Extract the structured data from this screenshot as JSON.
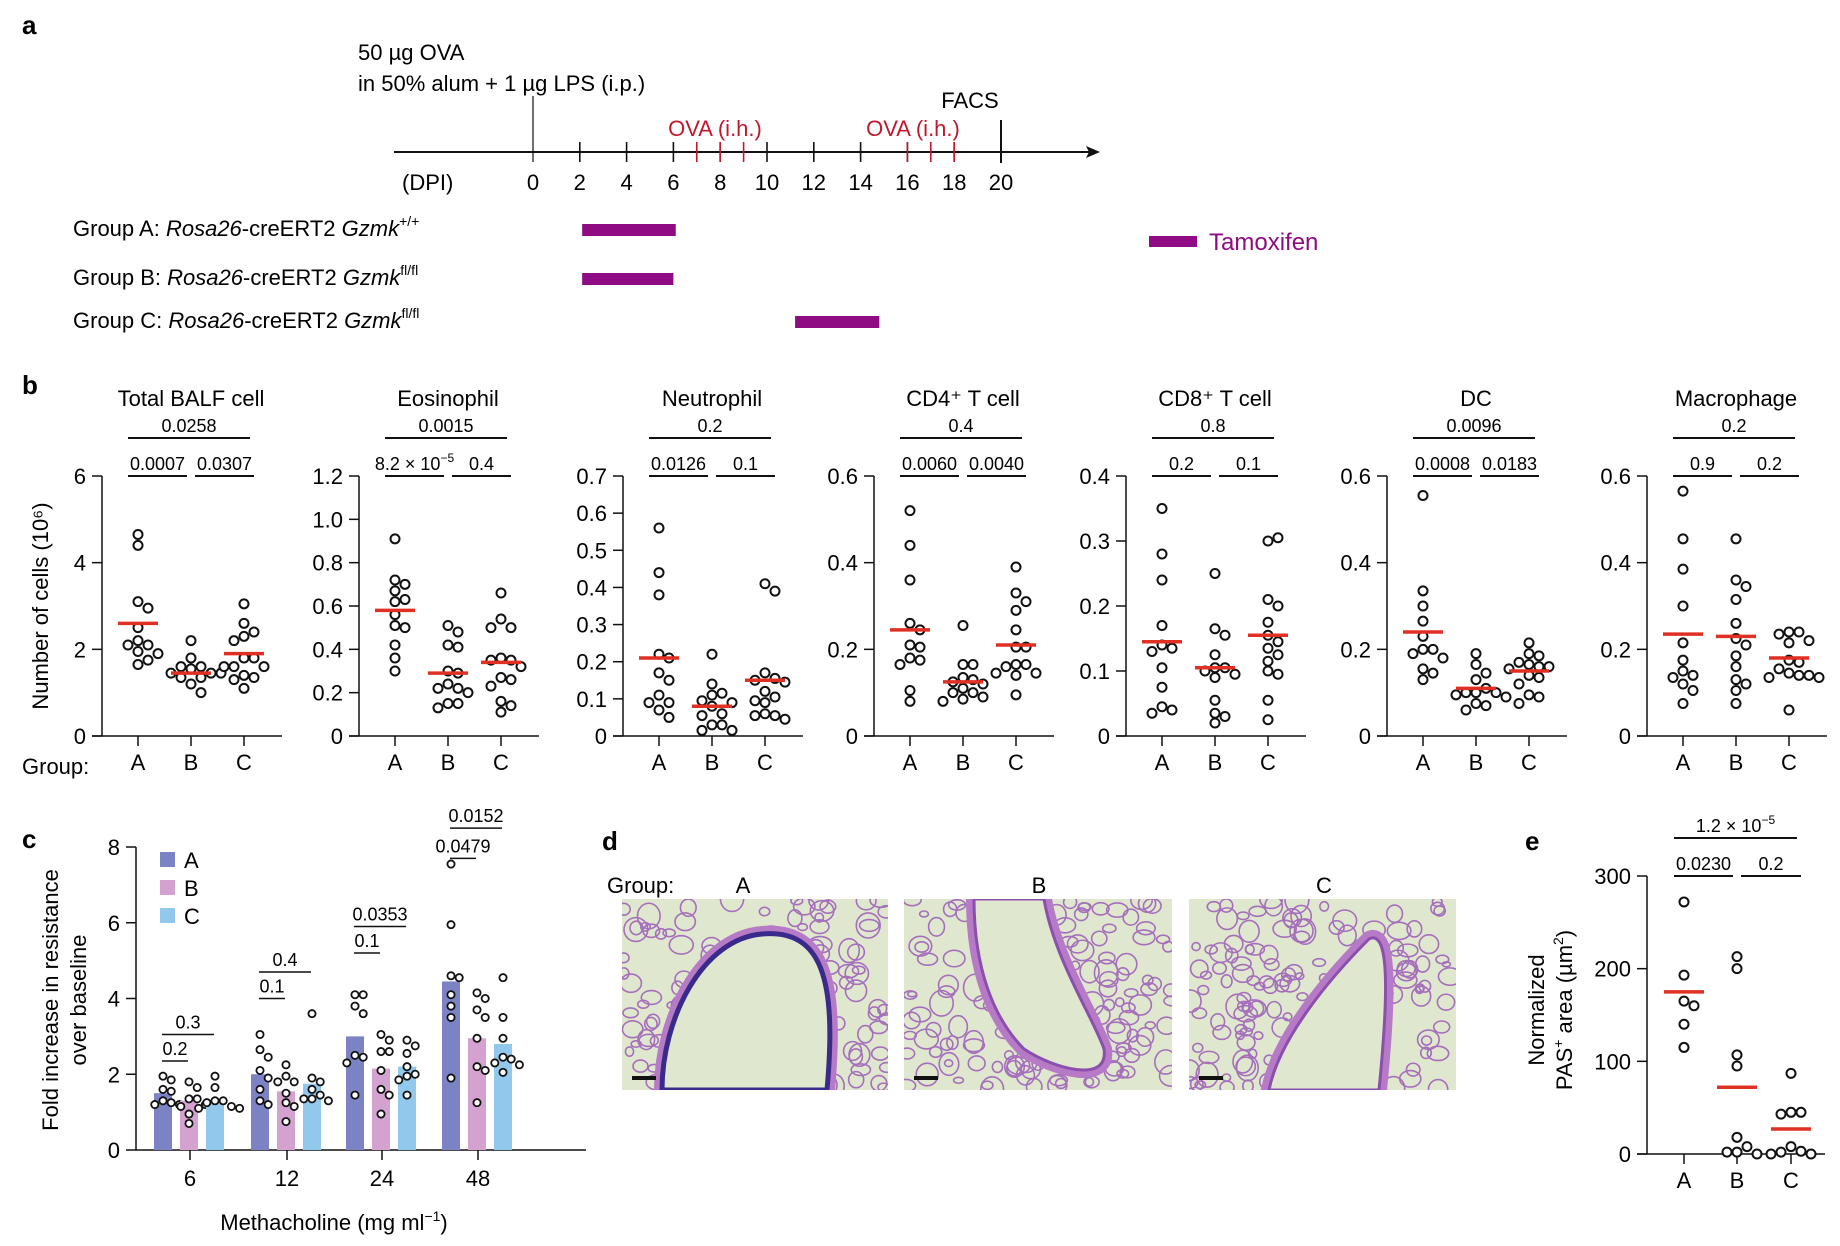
{
  "figure": {
    "panel_labels": [
      "a",
      "b",
      "c",
      "d",
      "e"
    ],
    "colors": {
      "tamoxifen": "#8e0b84",
      "ova_ih": "#c0182f",
      "median": "#e03024",
      "group_A": "#7c83c4",
      "group_B": "#d3a2cf",
      "group_C": "#92c8ec",
      "histo_bg": "#dfe8cf",
      "histo_stain": "#9b5ab8",
      "histo_goblet": "#3a2a8c"
    }
  },
  "panel_a": {
    "immunization_line1": "50 µg OVA",
    "immunization_line2": "in 50% alum + 1 µg LPS (i.p.)",
    "endpoint_label": "FACS",
    "ova_ih_label": "OVA (i.h.)",
    "axis_unit_label": "(DPI)",
    "tick_labels": [
      "0",
      "2",
      "4",
      "6",
      "8",
      "10",
      "12",
      "14",
      "16",
      "18",
      "20"
    ],
    "major_ticks_days": [
      0,
      2,
      4,
      6,
      8,
      10,
      12,
      14,
      16,
      18,
      20
    ],
    "ova_ih_days": [
      [
        7,
        8,
        9
      ],
      [
        16,
        17,
        18
      ]
    ],
    "immunization_day": 0,
    "facs_day": 20,
    "legend_label": "Tamoxifen",
    "groups": [
      {
        "prefix": "Group A: ",
        "strain": "Rosa26",
        "mid": "-creERT2 ",
        "gene": "Gzmk",
        "genotype": "+/+",
        "tamoxifen_days": [
          2.1,
          6.1
        ]
      },
      {
        "prefix": "Group B: ",
        "strain": "Rosa26",
        "mid": "-creERT2 ",
        "gene": "Gzmk",
        "genotype": "fl/fl",
        "tamoxifen_days": [
          2.1,
          6.0
        ]
      },
      {
        "prefix": "Group C: ",
        "strain": "Rosa26",
        "mid": "-creERT2 ",
        "gene": "Gzmk",
        "genotype": "fl/fl",
        "tamoxifen_days": [
          11.2,
          14.8
        ]
      }
    ]
  },
  "chart_data": [
    {
      "id": "b-total",
      "type": "scatter",
      "title": "Total BALF cell",
      "ylabel": "Number of cells (10⁶)",
      "xlabel_prefix": "Group:",
      "categories": [
        "A",
        "B",
        "C"
      ],
      "ylim": [
        0,
        6
      ],
      "yticks": [
        0,
        2,
        4,
        6
      ],
      "ytick_labels": [
        "0",
        "2",
        "4",
        "6"
      ],
      "points": {
        "A": [
          4.65,
          4.4,
          3.1,
          2.95,
          2.5,
          2.2,
          2.1,
          2.1,
          1.95,
          1.9,
          1.75,
          1.65
        ],
        "B": [
          2.2,
          1.8,
          1.6,
          1.6,
          1.55,
          1.45,
          1.45,
          1.45,
          1.35,
          1.35,
          1.2,
          1.0
        ],
        "C": [
          3.05,
          2.6,
          2.4,
          2.3,
          2.2,
          1.8,
          1.8,
          1.6,
          1.6,
          1.6,
          1.4,
          1.35,
          1.3,
          1.1
        ]
      },
      "medians": {
        "A": 2.6,
        "B": 1.45,
        "C": 1.9
      },
      "pvalues": [
        {
          "pair": [
            "A",
            "C"
          ],
          "label": "0.0258"
        },
        {
          "pair": [
            "A",
            "B"
          ],
          "label": "0.0007"
        },
        {
          "pair": [
            "B",
            "C"
          ],
          "label": "0.0307"
        }
      ]
    },
    {
      "id": "b-eos",
      "type": "scatter",
      "title": "Eosinophil",
      "categories": [
        "A",
        "B",
        "C"
      ],
      "ylim": [
        0,
        1.2
      ],
      "yticks": [
        0,
        0.2,
        0.4,
        0.6,
        0.8,
        1.0,
        1.2
      ],
      "ytick_labels": [
        "0",
        "0.2",
        "0.4",
        "0.6",
        "0.8",
        "1.0",
        "1.2"
      ],
      "points": {
        "A": [
          0.91,
          0.72,
          0.7,
          0.67,
          0.63,
          0.62,
          0.56,
          0.51,
          0.5,
          0.42,
          0.36,
          0.3
        ],
        "B": [
          0.51,
          0.48,
          0.42,
          0.41,
          0.3,
          0.29,
          0.24,
          0.22,
          0.22,
          0.2,
          0.15,
          0.15,
          0.13
        ],
        "C": [
          0.66,
          0.54,
          0.5,
          0.5,
          0.36,
          0.35,
          0.35,
          0.32,
          0.27,
          0.26,
          0.23,
          0.16,
          0.14,
          0.11
        ]
      },
      "medians": {
        "A": 0.58,
        "B": 0.29,
        "C": 0.34
      },
      "pvalues": [
        {
          "pair": [
            "A",
            "C"
          ],
          "label": "0.0015"
        },
        {
          "pair": [
            "A",
            "B"
          ],
          "label": "8.2 × 10",
          "exp": "−5"
        },
        {
          "pair": [
            "B",
            "C"
          ],
          "label": "0.4"
        }
      ]
    },
    {
      "id": "b-neut",
      "type": "scatter",
      "title": "Neutrophil",
      "categories": [
        "A",
        "B",
        "C"
      ],
      "ylim": [
        0,
        0.7
      ],
      "yticks": [
        0,
        0.1,
        0.2,
        0.3,
        0.4,
        0.5,
        0.6,
        0.7
      ],
      "ytick_labels": [
        "0",
        "0.1",
        "0.2",
        "0.3",
        "0.4",
        "0.5",
        "0.6",
        "0.7"
      ],
      "points": {
        "A": [
          0.56,
          0.44,
          0.38,
          0.22,
          0.21,
          0.17,
          0.15,
          0.11,
          0.09,
          0.09,
          0.07,
          0.05
        ],
        "B": [
          0.22,
          0.14,
          0.115,
          0.11,
          0.095,
          0.09,
          0.08,
          0.06,
          0.055,
          0.03,
          0.03,
          0.015,
          0.015
        ],
        "C": [
          0.41,
          0.39,
          0.17,
          0.155,
          0.15,
          0.145,
          0.12,
          0.105,
          0.095,
          0.09,
          0.06,
          0.055,
          0.055,
          0.045
        ]
      },
      "medians": {
        "A": 0.21,
        "B": 0.08,
        "C": 0.15
      },
      "pvalues": [
        {
          "pair": [
            "A",
            "C"
          ],
          "label": "0.2"
        },
        {
          "pair": [
            "A",
            "B"
          ],
          "label": "0.0126"
        },
        {
          "pair": [
            "B",
            "C"
          ],
          "label": "0.1"
        }
      ]
    },
    {
      "id": "b-cd4",
      "type": "scatter",
      "title": "CD4⁺ T cell",
      "categories": [
        "A",
        "B",
        "C"
      ],
      "ylim": [
        0,
        0.6
      ],
      "yticks": [
        0,
        0.2,
        0.4,
        0.6
      ],
      "ytick_labels": [
        "0",
        "0.2",
        "0.4",
        "0.6"
      ],
      "points": {
        "A": [
          0.52,
          0.44,
          0.36,
          0.26,
          0.245,
          0.21,
          0.205,
          0.18,
          0.175,
          0.165,
          0.105,
          0.08
        ],
        "B": [
          0.255,
          0.165,
          0.165,
          0.135,
          0.13,
          0.125,
          0.12,
          0.11,
          0.1,
          0.1,
          0.09,
          0.085,
          0.08
        ],
        "C": [
          0.39,
          0.33,
          0.31,
          0.29,
          0.245,
          0.205,
          0.205,
          0.165,
          0.165,
          0.16,
          0.145,
          0.145,
          0.14,
          0.095
        ]
      },
      "medians": {
        "A": 0.245,
        "B": 0.125,
        "C": 0.21
      },
      "pvalues": [
        {
          "pair": [
            "A",
            "C"
          ],
          "label": "0.4"
        },
        {
          "pair": [
            "A",
            "B"
          ],
          "label": "0.0060"
        },
        {
          "pair": [
            "B",
            "C"
          ],
          "label": "0.0040"
        }
      ]
    },
    {
      "id": "b-cd8",
      "type": "scatter",
      "title": "CD8⁺ T cell",
      "categories": [
        "A",
        "B",
        "C"
      ],
      "ylim": [
        0,
        0.4
      ],
      "yticks": [
        0,
        0.1,
        0.2,
        0.3,
        0.4
      ],
      "ytick_labels": [
        "0",
        "0.1",
        "0.2",
        "0.3",
        "0.4"
      ],
      "points": {
        "A": [
          0.35,
          0.28,
          0.24,
          0.17,
          0.14,
          0.135,
          0.13,
          0.105,
          0.075,
          0.045,
          0.04,
          0.035
        ],
        "B": [
          0.25,
          0.165,
          0.155,
          0.125,
          0.105,
          0.105,
          0.1,
          0.095,
          0.09,
          0.055,
          0.035,
          0.03,
          0.02
        ],
        "C": [
          0.3,
          0.305,
          0.21,
          0.2,
          0.175,
          0.155,
          0.145,
          0.135,
          0.125,
          0.115,
          0.1,
          0.095,
          0.055,
          0.025
        ]
      },
      "medians": {
        "A": 0.145,
        "B": 0.105,
        "C": 0.155
      },
      "pvalues": [
        {
          "pair": [
            "A",
            "C"
          ],
          "label": "0.8"
        },
        {
          "pair": [
            "A",
            "B"
          ],
          "label": "0.2"
        },
        {
          "pair": [
            "B",
            "C"
          ],
          "label": "0.1"
        }
      ]
    },
    {
      "id": "b-dc",
      "type": "scatter",
      "title": "DC",
      "categories": [
        "A",
        "B",
        "C"
      ],
      "ylim": [
        0,
        0.6
      ],
      "yticks": [
        0,
        0.2,
        0.4,
        0.6
      ],
      "ytick_labels": [
        "0",
        "0.2",
        "0.4",
        "0.6"
      ],
      "points": {
        "A": [
          0.555,
          0.335,
          0.3,
          0.265,
          0.23,
          0.2,
          0.2,
          0.19,
          0.18,
          0.155,
          0.145,
          0.13
        ],
        "B": [
          0.19,
          0.165,
          0.145,
          0.13,
          0.11,
          0.1,
          0.1,
          0.1,
          0.095,
          0.09,
          0.075,
          0.07,
          0.06
        ],
        "C": [
          0.215,
          0.19,
          0.185,
          0.17,
          0.165,
          0.16,
          0.16,
          0.155,
          0.14,
          0.135,
          0.12,
          0.095,
          0.09,
          0.075
        ]
      },
      "medians": {
        "A": 0.24,
        "B": 0.11,
        "C": 0.15
      },
      "pvalues": [
        {
          "pair": [
            "A",
            "C"
          ],
          "label": "0.0096"
        },
        {
          "pair": [
            "A",
            "B"
          ],
          "label": "0.0008"
        },
        {
          "pair": [
            "B",
            "C"
          ],
          "label": "0.0183"
        }
      ]
    },
    {
      "id": "b-mac",
      "type": "scatter",
      "title": "Macrophage",
      "categories": [
        "A",
        "B",
        "C"
      ],
      "ylim": [
        0,
        0.6
      ],
      "yticks": [
        0,
        0.2,
        0.4,
        0.6
      ],
      "ytick_labels": [
        "0",
        "0.2",
        "0.4",
        "0.6"
      ],
      "points": {
        "A": [
          0.565,
          0.455,
          0.385,
          0.3,
          0.215,
          0.175,
          0.15,
          0.14,
          0.135,
          0.12,
          0.105,
          0.075
        ],
        "B": [
          0.455,
          0.36,
          0.345,
          0.315,
          0.26,
          0.225,
          0.21,
          0.185,
          0.16,
          0.13,
          0.12,
          0.105,
          0.075
        ],
        "C": [
          0.24,
          0.24,
          0.235,
          0.22,
          0.215,
          0.175,
          0.17,
          0.155,
          0.145,
          0.14,
          0.14,
          0.135,
          0.135,
          0.06
        ]
      },
      "medians": {
        "A": 0.235,
        "B": 0.23,
        "C": 0.18
      },
      "pvalues": [
        {
          "pair": [
            "A",
            "C"
          ],
          "label": "0.2"
        },
        {
          "pair": [
            "A",
            "B"
          ],
          "label": "0.9"
        },
        {
          "pair": [
            "B",
            "C"
          ],
          "label": "0.2"
        }
      ]
    },
    {
      "id": "c",
      "type": "bar",
      "ylabel_line1": "Fold increase in resistance",
      "ylabel_line2": "over baseline",
      "xlabel": "Methacholine (mg ml",
      "xlabel_exp": "−1",
      "xlabel_suffix": ")",
      "categories": [
        "6",
        "12",
        "24",
        "48"
      ],
      "ylim": [
        0,
        8
      ],
      "yticks": [
        0,
        2,
        4,
        6,
        8
      ],
      "ytick_labels": [
        "0",
        "2",
        "4",
        "6",
        "8"
      ],
      "legend": [
        "A",
        "B",
        "C"
      ],
      "legend_position": "top-left",
      "series": [
        {
          "name": "A",
          "values": [
            1.5,
            2.0,
            3.0,
            4.45
          ],
          "points": [
            [
              1.95,
              1.85,
              1.6,
              1.55,
              1.3,
              1.25,
              1.2,
              1.2
            ],
            [
              3.05,
              2.65,
              2.45,
              2.1,
              1.9,
              1.6,
              1.3,
              1.2
            ],
            [
              4.1,
              4.1,
              3.8,
              3.6,
              2.5,
              2.45,
              2.3,
              1.45
            ],
            [
              7.55,
              5.95,
              4.6,
              4.55,
              4.1,
              3.8,
              3.5,
              1.9
            ]
          ]
        },
        {
          "name": "B",
          "values": [
            1.3,
            1.55,
            2.15,
            2.95
          ],
          "points": [
            [
              1.8,
              1.65,
              1.35,
              1.35,
              1.15,
              0.95,
              1.2,
              0.7
            ],
            [
              2.25,
              1.95,
              1.8,
              1.8,
              1.5,
              1.25,
              1.15,
              0.75
            ],
            [
              3.05,
              2.9,
              2.6,
              2.6,
              2.1,
              1.6,
              1.45,
              0.95
            ],
            [
              4.15,
              4.0,
              3.7,
              3.5,
              2.95,
              2.2,
              2.1,
              1.25
            ]
          ]
        },
        {
          "name": "C",
          "values": [
            1.3,
            1.75,
            2.2,
            2.8
          ],
          "points": [
            [
              1.95,
              1.65,
              1.3,
              1.3,
              1.25,
              1.15,
              1.1,
              1.1
            ],
            [
              3.6,
              1.9,
              1.8,
              1.6,
              1.45,
              1.35,
              1.35,
              1.3
            ],
            [
              2.9,
              2.75,
              2.55,
              2.2,
              2.0,
              1.95,
              1.85,
              1.45
            ],
            [
              4.55,
              3.5,
              2.95,
              2.45,
              2.4,
              2.3,
              2.25,
              2.05
            ]
          ]
        }
      ],
      "pvalues": [
        {
          "category": "6",
          "pair": [
            "A",
            "B"
          ],
          "label": "0.2"
        },
        {
          "category": "6",
          "pair": [
            "A",
            "C"
          ],
          "label": "0.3"
        },
        {
          "category": "12",
          "pair": [
            "A",
            "B"
          ],
          "label": "0.1"
        },
        {
          "category": "12",
          "pair": [
            "A",
            "C"
          ],
          "label": "0.4"
        },
        {
          "category": "24",
          "pair": [
            "A",
            "B"
          ],
          "label": "0.1"
        },
        {
          "category": "24",
          "pair": [
            "A",
            "C"
          ],
          "label": "0.0353"
        },
        {
          "category": "48",
          "pair": [
            "A",
            "B"
          ],
          "label": "0.0479"
        },
        {
          "category": "48",
          "pair": [
            "A",
            "C"
          ],
          "label": "0.0152"
        }
      ]
    },
    {
      "id": "e",
      "type": "scatter",
      "ylabel_line1": "Normalized",
      "ylabel_line2": "PAS",
      "ylabel_line2_sup": "+",
      "ylabel_line2_rest": " area (µm",
      "ylabel_line2_exp": "2",
      "ylabel_line2_end": ")",
      "categories": [
        "A",
        "B",
        "C"
      ],
      "ylim": [
        0,
        300
      ],
      "yticks": [
        0,
        100,
        200,
        300
      ],
      "ytick_labels": [
        "0",
        "100",
        "200",
        "300"
      ],
      "points": {
        "A": [
          272,
          193,
          165,
          160,
          140,
          115
        ],
        "B": [
          213,
          200,
          107,
          95,
          18,
          8,
          2,
          2,
          0
        ],
        "C": [
          87,
          45,
          45,
          43,
          8,
          3,
          2,
          0,
          0
        ]
      },
      "medians": {
        "A": 175,
        "B": 72,
        "C": 27
      },
      "pvalues": [
        {
          "pair": [
            "A",
            "C"
          ],
          "label": "1.2 × 10",
          "exp": "−5"
        },
        {
          "pair": [
            "A",
            "B"
          ],
          "label": "0.0230"
        },
        {
          "pair": [
            "B",
            "C"
          ],
          "label": "0.2"
        }
      ]
    }
  ],
  "panel_d": {
    "group_prefix": "Group:",
    "images": [
      {
        "group": "A",
        "description": "PAS-stained airway with goblet-cell staining"
      },
      {
        "group": "B",
        "description": "PAS-stained airway"
      },
      {
        "group": "C",
        "description": "PAS-stained airway"
      }
    ]
  }
}
